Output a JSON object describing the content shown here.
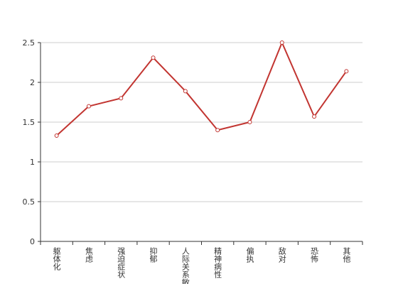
{
  "chart_data": {
    "type": "line",
    "categories": [
      "躯体化",
      "焦虑",
      "强迫症状",
      "抑郁",
      "人际关系敏感",
      "精神病性",
      "偏执",
      "敌对",
      "恐怖",
      "其他"
    ],
    "values": [
      1.33,
      1.7,
      1.8,
      2.31,
      1.89,
      1.4,
      1.5,
      2.5,
      1.57,
      2.14
    ],
    "color": "#c23531",
    "ylim": [
      0,
      2.5
    ],
    "yticks": [
      0,
      0.5,
      1,
      1.5,
      2,
      2.5
    ],
    "grid": true
  }
}
